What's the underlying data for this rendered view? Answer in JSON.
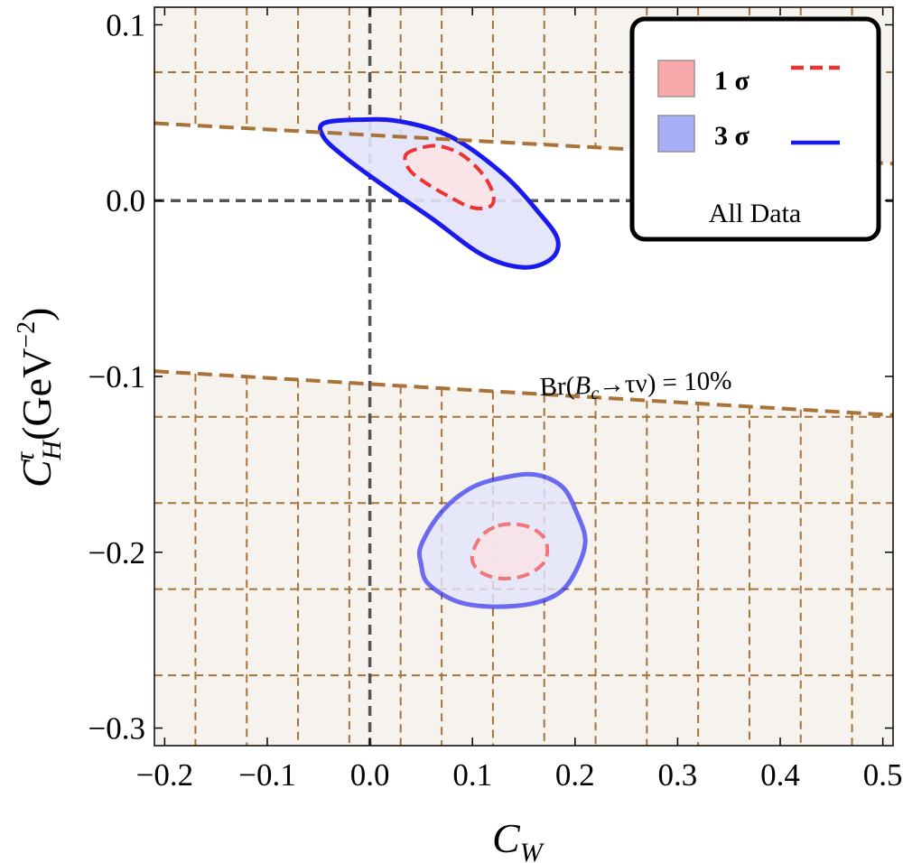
{
  "chart_data": {
    "type": "contour",
    "xlabel": "C",
    "xlabel_sub": "W",
    "ylabel": "C",
    "ylabel_sup": "τ",
    "ylabel_sub": "H",
    "ylabel_units": "(GeV",
    "ylabel_units_exp": "−2",
    "ylabel_units_close": ")",
    "xlim": [
      -0.21,
      0.51
    ],
    "ylim": [
      -0.31,
      0.11
    ],
    "xticks": [
      -0.2,
      -0.1,
      0.0,
      0.1,
      0.2,
      0.3,
      0.4,
      0.5
    ],
    "xtick_labels": [
      "−0.2",
      "−0.1",
      "0.0",
      "0.1",
      "0.2",
      "0.3",
      "0.4",
      "0.5"
    ],
    "yticks": [
      0.1,
      0.0,
      -0.1,
      -0.2,
      -0.3
    ],
    "ytick_labels": [
      "0.1",
      "0.0",
      "−0.1",
      "−0.2",
      "−0.3"
    ],
    "reference_lines": {
      "x": 0.0,
      "y": 0.0
    },
    "excluded_region": {
      "label_prefix": "Br(",
      "label_B": "B",
      "label_c": "c",
      "label_rest": "→τν) = 10%",
      "upper_boundary": [
        [
          -0.21,
          0.044
        ],
        [
          0.51,
          0.021
        ]
      ],
      "lower_boundary": [
        [
          -0.21,
          -0.097
        ],
        [
          0.51,
          -0.122
        ]
      ],
      "grid_x": [
        -0.17,
        -0.12,
        -0.07,
        -0.02,
        0.03,
        0.07,
        0.12,
        0.17,
        0.22,
        0.27,
        0.32,
        0.37,
        0.42,
        0.47
      ],
      "grid_y_upper": [
        0.073
      ],
      "grid_y_lower": [
        -0.123,
        -0.172,
        -0.221,
        -0.27
      ],
      "colors": {
        "fill": "#f6f2ee",
        "line": "#a87238"
      }
    },
    "contours": [
      {
        "name": "1 σ",
        "style": "dashed",
        "color": "#ee3333",
        "fill": "#fbe3e6",
        "regions": [
          [
            [
              0.035,
              0.026
            ],
            [
              0.05,
              0.03
            ],
            [
              0.068,
              0.031
            ],
            [
              0.09,
              0.026
            ],
            [
              0.11,
              0.015
            ],
            [
              0.12,
              0.004
            ],
            [
              0.118,
              -0.003
            ],
            [
              0.1,
              -0.004
            ],
            [
              0.075,
              0.003
            ],
            [
              0.052,
              0.011
            ],
            [
              0.038,
              0.018
            ]
          ],
          [
            [
              0.125,
              -0.185
            ],
            [
              0.14,
              -0.184
            ],
            [
              0.157,
              -0.186
            ],
            [
              0.17,
              -0.192
            ],
            [
              0.173,
              -0.2
            ],
            [
              0.168,
              -0.207
            ],
            [
              0.152,
              -0.213
            ],
            [
              0.13,
              -0.215
            ],
            [
              0.11,
              -0.212
            ],
            [
              0.1,
              -0.205
            ],
            [
              0.103,
              -0.196
            ],
            [
              0.112,
              -0.189
            ]
          ]
        ]
      },
      {
        "name": "3 σ",
        "style": "solid",
        "color": "#1a1aee",
        "fill": "#e2e3fa",
        "regions": [
          [
            [
              -0.045,
              0.044
            ],
            [
              -0.01,
              0.046
            ],
            [
              0.03,
              0.045
            ],
            [
              0.08,
              0.036
            ],
            [
              0.13,
              0.015
            ],
            [
              0.165,
              -0.007
            ],
            [
              0.183,
              -0.022
            ],
            [
              0.177,
              -0.033
            ],
            [
              0.15,
              -0.038
            ],
            [
              0.11,
              -0.031
            ],
            [
              0.06,
              -0.01
            ],
            [
              0.01,
              0.01
            ],
            [
              -0.025,
              0.025
            ],
            [
              -0.045,
              0.036
            ]
          ],
          [
            [
              0.05,
              -0.196
            ],
            [
              0.07,
              -0.177
            ],
            [
              0.1,
              -0.163
            ],
            [
              0.135,
              -0.157
            ],
            [
              0.163,
              -0.156
            ],
            [
              0.188,
              -0.163
            ],
            [
              0.202,
              -0.178
            ],
            [
              0.21,
              -0.193
            ],
            [
              0.203,
              -0.208
            ],
            [
              0.187,
              -0.222
            ],
            [
              0.16,
              -0.229
            ],
            [
              0.12,
              -0.231
            ],
            [
              0.085,
              -0.228
            ],
            [
              0.057,
              -0.218
            ],
            [
              0.05,
              -0.207
            ]
          ]
        ]
      }
    ],
    "legend": {
      "position": "top-right",
      "rows": [
        {
          "label": "1 σ",
          "swatch": "#f9a9ab",
          "line_color": "#ee3333",
          "line_style": "dashed"
        },
        {
          "label": "3 σ",
          "swatch": "#a6aef4",
          "line_color": "#1a1aee",
          "line_style": "solid"
        }
      ],
      "caption": "All Data"
    }
  }
}
